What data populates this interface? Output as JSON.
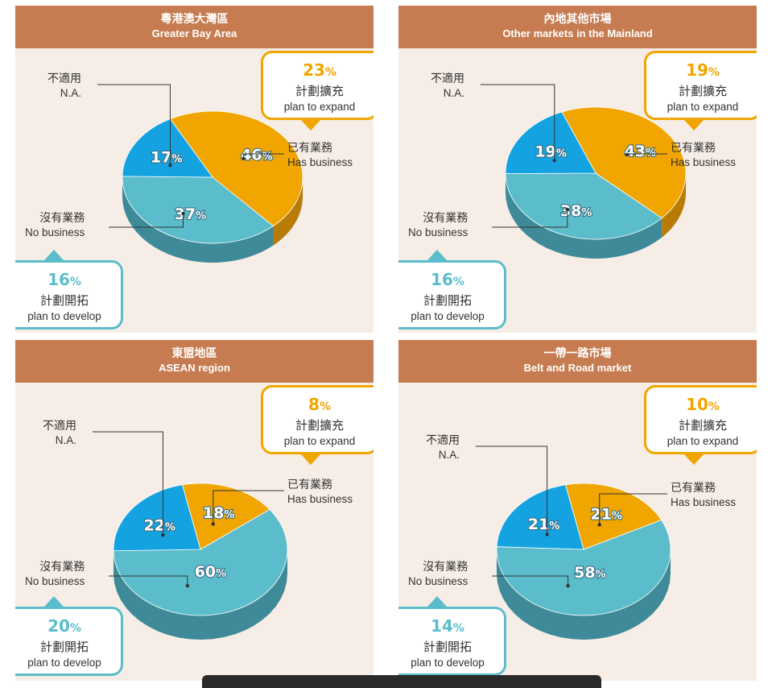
{
  "panels": [
    {
      "title_zh": "粵港澳大灣區",
      "title_en": "Greater Bay Area",
      "expand_pct": "23",
      "develop_pct": "16",
      "slices": [
        {
          "name": "已有業務 Has business",
          "value": 46,
          "color": "#f0a500",
          "side": "#b87c06"
        },
        {
          "name": "沒有業務 No business",
          "value": 37,
          "color": "#5bbdcb",
          "side": "#3f8a99"
        },
        {
          "name": "不適用 N.A.",
          "value": 17,
          "color": "#14a3e0",
          "side": "#0f6ea0"
        }
      ]
    },
    {
      "title_zh": "內地其他市場",
      "title_en": "Other markets in the Mainland",
      "expand_pct": "19",
      "develop_pct": "16",
      "slices": [
        {
          "name": "已有業務 Has business",
          "value": 43,
          "color": "#f0a500",
          "side": "#b87c06"
        },
        {
          "name": "沒有業務 No business",
          "value": 38,
          "color": "#5bbdcb",
          "side": "#3f8a99"
        },
        {
          "name": "不適用 N.A.",
          "value": 19,
          "color": "#14a3e0",
          "side": "#0f6ea0"
        }
      ]
    },
    {
      "title_zh": "東盟地區",
      "title_en": "ASEAN region",
      "expand_pct": "8",
      "develop_pct": "20",
      "slices": [
        {
          "name": "已有業務 Has business",
          "value": 18,
          "color": "#f0a500",
          "side": "#b87c06"
        },
        {
          "name": "沒有業務 No business",
          "value": 60,
          "color": "#5bbdcb",
          "side": "#3f8a99"
        },
        {
          "name": "不適用 N.A.",
          "value": 22,
          "color": "#14a3e0",
          "side": "#0f6ea0"
        }
      ]
    },
    {
      "title_zh": "一帶一路市場",
      "title_en": "Belt and Road market",
      "expand_pct": "10",
      "develop_pct": "14",
      "slices": [
        {
          "name": "已有業務 Has business",
          "value": 21,
          "color": "#f0a500",
          "side": "#b87c06"
        },
        {
          "name": "沒有業務 No business",
          "value": 58,
          "color": "#5bbdcb",
          "side": "#3f8a99"
        },
        {
          "name": "不適用 N.A.",
          "value": 21,
          "color": "#14a3e0",
          "side": "#0f6ea0"
        }
      ]
    }
  ],
  "labels": {
    "has_zh": "已有業務",
    "has_en": "Has business",
    "no_zh": "沒有業務",
    "no_en": "No business",
    "na_zh": "不適用",
    "na_en": "N.A.",
    "expand_zh": "計劃擴充",
    "expand_en": "plan to expand",
    "develop_zh": "計劃開拓",
    "develop_en": "plan to develop",
    "pct_sign": "%"
  },
  "chart_data": [
    {
      "type": "pie",
      "title": "粵港澳大灣區 Greater Bay Area",
      "categories": [
        "已有業務 Has business",
        "沒有業務 No business",
        "不適用 N.A."
      ],
      "values": [
        46,
        37,
        17
      ],
      "annotations": [
        {
          "label": "計劃擴充 plan to expand",
          "value": 23
        },
        {
          "label": "計劃開拓 plan to develop",
          "value": 16
        }
      ]
    },
    {
      "type": "pie",
      "title": "內地其他市場 Other markets in the Mainland",
      "categories": [
        "已有業務 Has business",
        "沒有業務 No business",
        "不適用 N.A."
      ],
      "values": [
        43,
        38,
        19
      ],
      "annotations": [
        {
          "label": "計劃擴充 plan to expand",
          "value": 19
        },
        {
          "label": "計劃開拓 plan to develop",
          "value": 16
        }
      ]
    },
    {
      "type": "pie",
      "title": "東盟地區 ASEAN region",
      "categories": [
        "已有業務 Has business",
        "沒有業務 No business",
        "不適用 N.A."
      ],
      "values": [
        18,
        60,
        22
      ],
      "annotations": [
        {
          "label": "計劃擴充 plan to expand",
          "value": 8
        },
        {
          "label": "計劃開拓 plan to develop",
          "value": 20
        }
      ]
    },
    {
      "type": "pie",
      "title": "一帶一路市場 Belt and Road market",
      "categories": [
        "已有業務 Has business",
        "沒有業務 No business",
        "不適用 N.A."
      ],
      "values": [
        21,
        58,
        21
      ],
      "annotations": [
        {
          "label": "計劃擴充 plan to expand",
          "value": 10
        },
        {
          "label": "計劃開拓 plan to develop",
          "value": 14
        }
      ]
    }
  ]
}
